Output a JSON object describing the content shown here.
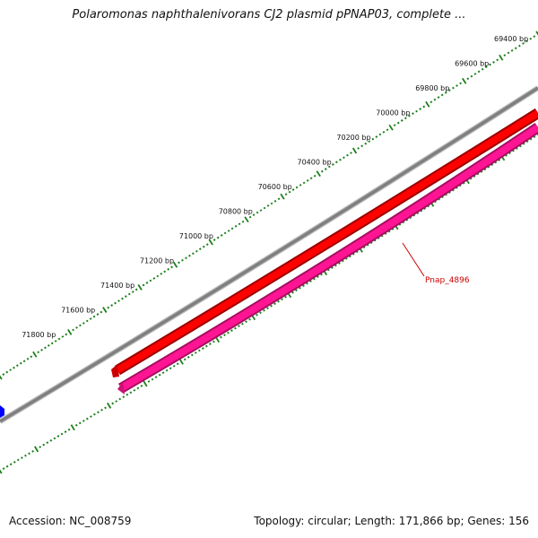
{
  "title": "Polaromonas naphthalenivorans CJ2 plasmid pPNAP03, complete ...",
  "footer": {
    "accession": "Accession: NC_008759",
    "summary": "Topology: circular; Length: 171,866 bp; Genes: 156"
  },
  "colors": {
    "backbone": "#7f7f7f",
    "forward_gene": "#ff0000",
    "reverse_gene": "#ff1493",
    "other_feature": "#0000ff",
    "ticks": "#1a7f1a",
    "gene_label": "#cc0000"
  },
  "ruler": {
    "labels": [
      "69400 bp",
      "69600 bp",
      "69800 bp",
      "70000 bp",
      "70200 bp",
      "70400 bp",
      "70600 bp",
      "70800 bp",
      "71000 bp",
      "71200 bp",
      "71400 bp",
      "71600 bp",
      "71800 bp"
    ]
  },
  "genes": [
    {
      "name": "",
      "strand": "forward"
    },
    {
      "name": "Pnap_4896",
      "strand": "reverse"
    }
  ]
}
